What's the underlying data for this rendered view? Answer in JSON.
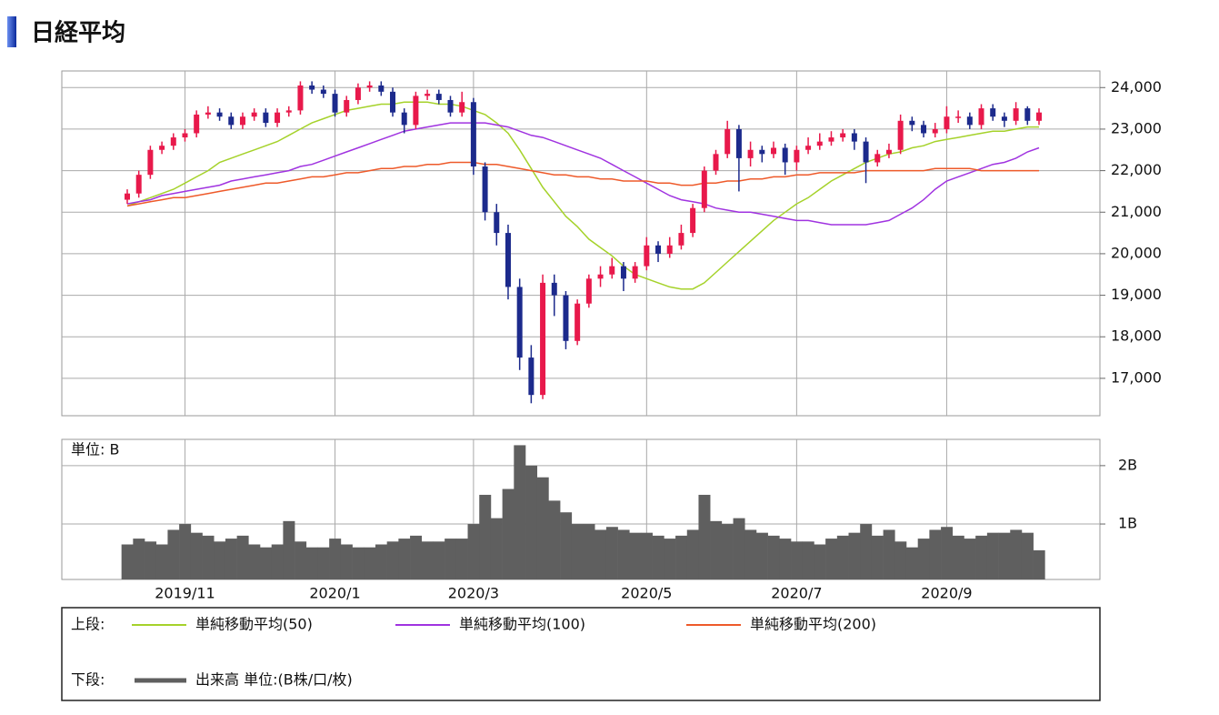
{
  "chart_data": {
    "type": "candlestick",
    "title": "日経平均",
    "categories": [
      null,
      null,
      null,
      null,
      null,
      "2019/11",
      null,
      null,
      null,
      null,
      null,
      null,
      null,
      null,
      null,
      null,
      null,
      null,
      "2020/1",
      null,
      null,
      null,
      null,
      null,
      null,
      null,
      null,
      null,
      null,
      null,
      "2020/3",
      null,
      null,
      null,
      null,
      null,
      null,
      null,
      null,
      null,
      null,
      null,
      null,
      null,
      null,
      "2020/5",
      null,
      null,
      null,
      null,
      null,
      null,
      null,
      null,
      null,
      null,
      null,
      null,
      "2020/7",
      null,
      null,
      null,
      null,
      null,
      null,
      null,
      null,
      null,
      null,
      null,
      null,
      "2020/9",
      null,
      null,
      null,
      null,
      null,
      null,
      null,
      null
    ],
    "open": [
      21300,
      21450,
      21900,
      22500,
      22600,
      22800,
      22900,
      23350,
      23400,
      23300,
      23100,
      23300,
      23400,
      23150,
      23400,
      23450,
      24050,
      23950,
      23850,
      23400,
      23700,
      24000,
      24050,
      23900,
      23400,
      23100,
      23800,
      23850,
      23700,
      23400,
      23650,
      22100,
      21000,
      20500,
      19200,
      17500,
      16600,
      19300,
      19000,
      17900,
      18800,
      19400,
      19500,
      19700,
      19400,
      19700,
      20200,
      20000,
      20200,
      20500,
      21100,
      22000,
      22400,
      23000,
      22300,
      22500,
      22400,
      22550,
      22200,
      22500,
      22600,
      22700,
      22800,
      22900,
      22700,
      22200,
      22400,
      22500,
      23200,
      23100,
      22900,
      23000,
      23300,
      23300,
      23100,
      23500,
      23300,
      23200,
      23500,
      23200
    ],
    "high": [
      21550,
      22000,
      22600,
      22700,
      22900,
      23000,
      23450,
      23550,
      23500,
      23400,
      23400,
      23500,
      23500,
      23500,
      23550,
      24150,
      24150,
      24050,
      23950,
      23800,
      24100,
      24150,
      24150,
      24000,
      23500,
      23900,
      23950,
      23950,
      23800,
      23900,
      23750,
      22200,
      21200,
      20700,
      19400,
      17800,
      19500,
      19500,
      19100,
      18900,
      19500,
      19700,
      19900,
      19800,
      19800,
      20400,
      20300,
      20400,
      20700,
      21200,
      22100,
      22500,
      23200,
      23100,
      22700,
      22600,
      22700,
      22650,
      22600,
      22800,
      22900,
      22950,
      23000,
      23000,
      22800,
      22500,
      22650,
      23350,
      23300,
      23200,
      23150,
      23550,
      23450,
      23400,
      23600,
      23600,
      23400,
      23650,
      23550,
      23500
    ],
    "low": [
      21200,
      21350,
      21800,
      22400,
      22500,
      22700,
      22800,
      23250,
      23200,
      23000,
      23000,
      23200,
      23050,
      23050,
      23300,
      23350,
      23850,
      23750,
      23300,
      23300,
      23600,
      23900,
      23800,
      23300,
      22900,
      23000,
      23700,
      23600,
      23300,
      23300,
      21900,
      20800,
      20200,
      18900,
      17200,
      16400,
      16500,
      18500,
      17700,
      17800,
      18700,
      19200,
      19400,
      19100,
      19300,
      19600,
      19800,
      19900,
      20100,
      20400,
      21000,
      21900,
      22300,
      21500,
      22100,
      22200,
      22300,
      21900,
      22000,
      22400,
      22500,
      22600,
      22700,
      22500,
      21700,
      22100,
      22300,
      22400,
      22950,
      22800,
      22800,
      22900,
      23150,
      23000,
      23000,
      23200,
      23050,
      23100,
      23100,
      23100
    ],
    "close": [
      21450,
      21900,
      22500,
      22600,
      22800,
      22900,
      23350,
      23400,
      23300,
      23100,
      23300,
      23400,
      23150,
      23400,
      23450,
      24050,
      23950,
      23850,
      23400,
      23700,
      24000,
      24050,
      23900,
      23400,
      23100,
      23800,
      23850,
      23700,
      23400,
      23650,
      22100,
      21000,
      20500,
      19200,
      17500,
      16600,
      19300,
      19000,
      17900,
      18800,
      19400,
      19500,
      19700,
      19400,
      19700,
      20200,
      20000,
      20200,
      20500,
      21100,
      22000,
      22400,
      23000,
      22300,
      22500,
      22400,
      22550,
      22200,
      22500,
      22600,
      22700,
      22800,
      22900,
      22700,
      22200,
      22400,
      22500,
      23200,
      23100,
      22900,
      23000,
      23300,
      23300,
      23100,
      23500,
      23300,
      23200,
      23500,
      23200,
      23400
    ],
    "up_color": "#e8194b",
    "down_color": "#1c2a8c",
    "ylim": [
      16100,
      24400
    ],
    "yticks": [
      {
        "value": 17000,
        "label": "17,000"
      },
      {
        "value": 18000,
        "label": "18,000"
      },
      {
        "value": 19000,
        "label": "19,000"
      },
      {
        "value": 20000,
        "label": "20,000"
      },
      {
        "value": 21000,
        "label": "21,000"
      },
      {
        "value": 22000,
        "label": "22,000"
      },
      {
        "value": 23000,
        "label": "23,000"
      },
      {
        "value": 24000,
        "label": "24,000"
      }
    ],
    "grid": true,
    "upper_label": "上段:",
    "series": [
      {
        "name": "単純移動平均(50)",
        "color": "#a5d22a",
        "values": [
          21150,
          21250,
          21350,
          21450,
          21550,
          21700,
          21850,
          22000,
          22200,
          22300,
          22400,
          22500,
          22600,
          22700,
          22850,
          23000,
          23150,
          23250,
          23350,
          23450,
          23500,
          23550,
          23600,
          23600,
          23650,
          23650,
          23650,
          23600,
          23600,
          23550,
          23450,
          23350,
          23150,
          22900,
          22500,
          22050,
          21600,
          21250,
          20900,
          20650,
          20350,
          20150,
          19950,
          19700,
          19500,
          19400,
          19300,
          19200,
          19150,
          19150,
          19300,
          19550,
          19800,
          20050,
          20300,
          20550,
          20800,
          21000,
          21200,
          21350,
          21550,
          21750,
          21900,
          22050,
          22200,
          22300,
          22400,
          22450,
          22550,
          22600,
          22700,
          22750,
          22800,
          22850,
          22900,
          22950,
          22950,
          23000,
          23050,
          23050
        ]
      },
      {
        "name": "単純移動平均(100)",
        "color": "#a033e0",
        "values": [
          21200,
          21250,
          21300,
          21400,
          21450,
          21500,
          21550,
          21600,
          21650,
          21750,
          21800,
          21850,
          21900,
          21950,
          22000,
          22100,
          22150,
          22250,
          22350,
          22450,
          22550,
          22650,
          22750,
          22850,
          22950,
          23000,
          23050,
          23100,
          23150,
          23150,
          23150,
          23150,
          23100,
          23050,
          22950,
          22850,
          22800,
          22700,
          22600,
          22500,
          22400,
          22300,
          22150,
          22000,
          21850,
          21700,
          21550,
          21400,
          21300,
          21250,
          21200,
          21100,
          21050,
          21000,
          21000,
          20950,
          20900,
          20850,
          20800,
          20800,
          20750,
          20700,
          20700,
          20700,
          20700,
          20750,
          20800,
          20950,
          21100,
          21300,
          21550,
          21750,
          21850,
          21950,
          22050,
          22150,
          22200,
          22300,
          22450,
          22550
        ]
      },
      {
        "name": "単純移動平均(200)",
        "color": "#ee5a2a",
        "values": [
          21150,
          21200,
          21250,
          21300,
          21350,
          21350,
          21400,
          21450,
          21500,
          21550,
          21600,
          21650,
          21700,
          21700,
          21750,
          21800,
          21850,
          21850,
          21900,
          21950,
          21950,
          22000,
          22050,
          22050,
          22100,
          22100,
          22150,
          22150,
          22200,
          22200,
          22200,
          22150,
          22150,
          22100,
          22050,
          22000,
          21950,
          21900,
          21900,
          21850,
          21850,
          21800,
          21800,
          21750,
          21750,
          21750,
          21700,
          21700,
          21650,
          21650,
          21700,
          21700,
          21750,
          21750,
          21800,
          21800,
          21850,
          21850,
          21900,
          21900,
          21950,
          21950,
          21950,
          21950,
          22000,
          22000,
          22000,
          22000,
          22000,
          22000,
          22050,
          22050,
          22050,
          22050,
          22000,
          22000,
          22000,
          22000,
          22000,
          22000
        ]
      }
    ],
    "volume": {
      "name": "出来高 単位:(B株/口/枚)",
      "unit_label": "単位: B",
      "lower_label": "下段:",
      "color": "#5f5f5f",
      "values": [
        0.65,
        0.75,
        0.7,
        0.65,
        0.9,
        1.0,
        0.85,
        0.8,
        0.7,
        0.75,
        0.8,
        0.65,
        0.6,
        0.65,
        1.05,
        0.7,
        0.6,
        0.6,
        0.75,
        0.65,
        0.6,
        0.6,
        0.65,
        0.7,
        0.75,
        0.8,
        0.7,
        0.7,
        0.75,
        0.75,
        1.0,
        1.5,
        1.1,
        1.6,
        2.35,
        2.0,
        1.8,
        1.4,
        1.2,
        1.0,
        1.0,
        0.9,
        0.95,
        0.9,
        0.85,
        0.85,
        0.8,
        0.75,
        0.8,
        0.9,
        1.5,
        1.05,
        1.0,
        1.1,
        0.9,
        0.85,
        0.8,
        0.75,
        0.7,
        0.7,
        0.65,
        0.75,
        0.8,
        0.85,
        1.0,
        0.8,
        0.9,
        0.7,
        0.6,
        0.75,
        0.9,
        0.95,
        0.8,
        0.75,
        0.8,
        0.85,
        0.85,
        0.9,
        0.85,
        0.55
      ],
      "ylim": [
        0.05,
        2.45
      ],
      "yticks": [
        {
          "value": 1,
          "label": "1B"
        },
        {
          "value": 2,
          "label": "2B"
        }
      ]
    }
  }
}
